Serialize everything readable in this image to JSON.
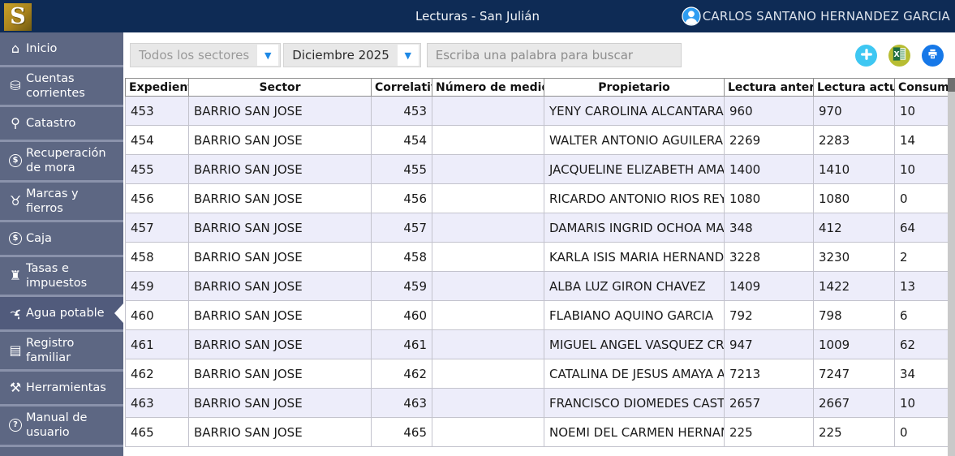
{
  "header": {
    "logo_text": "S",
    "title": "Lecturas - San Julián",
    "user_name": "CARLOS SANTANO HERNANDEZ GARCIA"
  },
  "sidebar": {
    "items": [
      {
        "label": "Inicio",
        "icon": "home-icon"
      },
      {
        "label": "Cuentas corrientes",
        "icon": "coins-icon"
      },
      {
        "label": "Catastro",
        "icon": "map-pin-icon"
      },
      {
        "label": "Recuperación de mora",
        "icon": "overdue-dollar-icon"
      },
      {
        "label": "Marcas y fierros",
        "icon": "bull-icon"
      },
      {
        "label": "Caja",
        "icon": "cash-circle-icon"
      },
      {
        "label": "Tasas e impuestos",
        "icon": "bank-icon"
      },
      {
        "label": "Agua potable",
        "icon": "faucet-icon",
        "active": true
      },
      {
        "label": "Registro familiar",
        "icon": "id-card-icon"
      },
      {
        "label": "Herramientas",
        "icon": "tools-icon"
      },
      {
        "label": "Manual de usuario",
        "icon": "help-circle-icon"
      }
    ]
  },
  "filters": {
    "sector_value": "Todos los sectores",
    "month_value": "Diciembre 2025",
    "search_placeholder": "Escriba una palabra para buscar"
  },
  "toolbar": {
    "buttons": [
      {
        "name": "add",
        "icon": "plus-icon",
        "color": "#3ec7f2"
      },
      {
        "name": "excel",
        "icon": "excel-icon",
        "color": "#b7bd33"
      },
      {
        "name": "print",
        "icon": "printer-icon",
        "color": "#1678e8"
      }
    ]
  },
  "table": {
    "columns": [
      "Expediente",
      "Sector",
      "Correlativo",
      "Número de medidor",
      "Propietario",
      "Lectura anterior",
      "Lectura actual",
      "Consumo"
    ],
    "rows": [
      {
        "expediente": "453",
        "sector": "BARRIO SAN JOSE",
        "correlativo": "453",
        "medidor": "",
        "propietario": "YENY CAROLINA ALCANTARA",
        "lectura_anterior": "960",
        "lectura_actual": "970",
        "consumo": "10"
      },
      {
        "expediente": "454",
        "sector": "BARRIO SAN JOSE",
        "correlativo": "454",
        "medidor": "",
        "propietario": "WALTER ANTONIO AGUILERA ...",
        "lectura_anterior": "2269",
        "lectura_actual": "2283",
        "consumo": "14"
      },
      {
        "expediente": "455",
        "sector": "BARRIO SAN JOSE",
        "correlativo": "455",
        "medidor": "",
        "propietario": "JACQUELINE ELIZABETH AMAYA",
        "lectura_anterior": "1400",
        "lectura_actual": "1410",
        "consumo": "10"
      },
      {
        "expediente": "456",
        "sector": "BARRIO SAN JOSE",
        "correlativo": "456",
        "medidor": "",
        "propietario": "RICARDO ANTONIO RIOS REY...",
        "lectura_anterior": "1080",
        "lectura_actual": "1080",
        "consumo": "0"
      },
      {
        "expediente": "457",
        "sector": "BARRIO SAN JOSE",
        "correlativo": "457",
        "medidor": "",
        "propietario": "DAMARIS INGRID OCHOA MA...",
        "lectura_anterior": "348",
        "lectura_actual": "412",
        "consumo": "64"
      },
      {
        "expediente": "458",
        "sector": "BARRIO SAN JOSE",
        "correlativo": "458",
        "medidor": "",
        "propietario": "KARLA ISIS MARIA HERNAND...",
        "lectura_anterior": "3228",
        "lectura_actual": "3230",
        "consumo": "2"
      },
      {
        "expediente": "459",
        "sector": "BARRIO SAN JOSE",
        "correlativo": "459",
        "medidor": "",
        "propietario": "ALBA LUZ GIRON CHAVEZ",
        "lectura_anterior": "1409",
        "lectura_actual": "1422",
        "consumo": "13"
      },
      {
        "expediente": "460",
        "sector": "BARRIO SAN JOSE",
        "correlativo": "460",
        "medidor": "",
        "propietario": "FLABIANO AQUINO GARCIA",
        "lectura_anterior": "792",
        "lectura_actual": "798",
        "consumo": "6"
      },
      {
        "expediente": "461",
        "sector": "BARRIO SAN JOSE",
        "correlativo": "461",
        "medidor": "",
        "propietario": "MIGUEL ANGEL VASQUEZ CRUZ",
        "lectura_anterior": "947",
        "lectura_actual": "1009",
        "consumo": "62"
      },
      {
        "expediente": "462",
        "sector": "BARRIO SAN JOSE",
        "correlativo": "462",
        "medidor": "",
        "propietario": "CATALINA DE JESUS AMAYA A...",
        "lectura_anterior": "7213",
        "lectura_actual": "7247",
        "consumo": "34"
      },
      {
        "expediente": "463",
        "sector": "BARRIO SAN JOSE",
        "correlativo": "463",
        "medidor": "",
        "propietario": "FRANCISCO DIOMEDES CAST...",
        "lectura_anterior": "2657",
        "lectura_actual": "2667",
        "consumo": "10"
      },
      {
        "expediente": "465",
        "sector": "BARRIO SAN JOSE",
        "correlativo": "465",
        "medidor": "",
        "propietario": "NOEMI DEL CARMEN HERNAN...",
        "lectura_anterior": "225",
        "lectura_actual": "225",
        "consumo": "0"
      }
    ]
  },
  "colors": {
    "header-bg": "#0e2b55",
    "sidebar-bg": "#5d6783",
    "accent": "#1e88e5",
    "row-alt": "#ededfa",
    "add-color": "#3ec7f2",
    "excel-color": "#b7bd33",
    "print-color": "#1678e8"
  }
}
